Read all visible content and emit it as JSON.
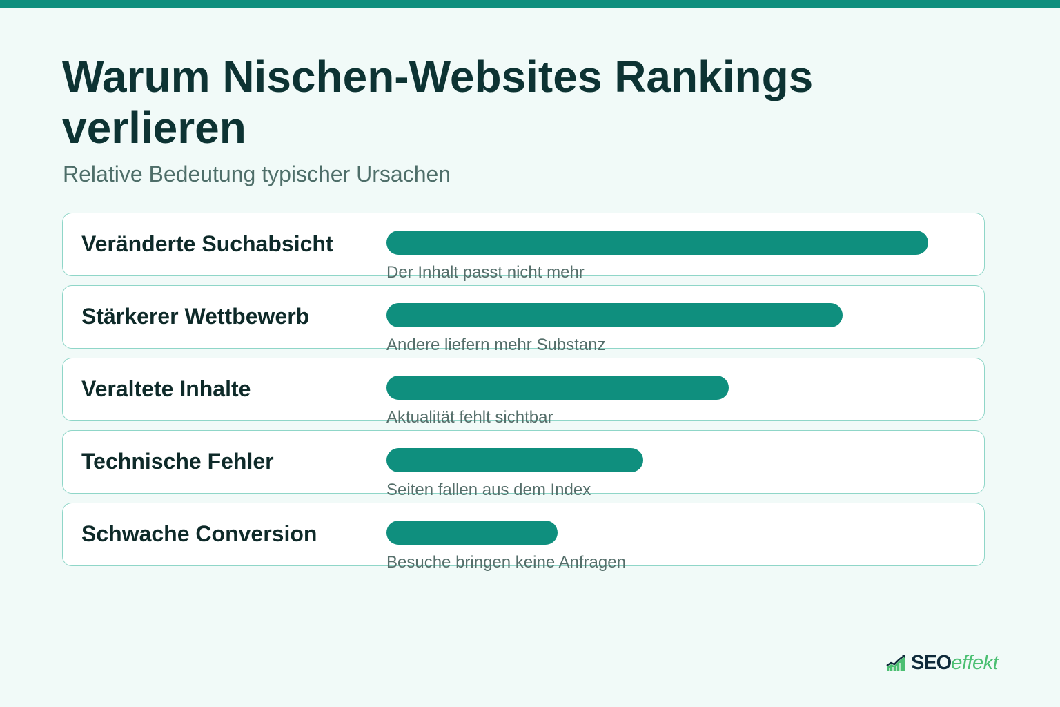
{
  "title": "Warum Nischen-Websites Rankings verlieren",
  "subtitle": "Relative Bedeutung typischer Ursachen",
  "colors": {
    "accent": "#0f8f7e",
    "background": "#f1faf8",
    "card_border": "#8fd6c8",
    "brand_green": "#4bbf72",
    "brand_dark": "#0e2a3a"
  },
  "chart_data": {
    "type": "bar",
    "orientation": "horizontal",
    "title": "Warum Nischen-Websites Rankings verlieren",
    "subtitle": "Relative Bedeutung typischer Ursachen",
    "categories": [
      "Veränderte Suchabsicht",
      "Stärkerer Wettbewerb",
      "Veraltete Inhalte",
      "Technische Fehler",
      "Schwache Conversion"
    ],
    "values": [
      95,
      80,
      60,
      45,
      30
    ],
    "notes": [
      "Der Inhalt passt nicht mehr",
      "Andere liefern mehr Substanz",
      "Aktualität fehlt sichtbar",
      "Seiten fallen aus dem Index",
      "Besuche bringen keine Anfragen"
    ],
    "xlim": [
      0,
      100
    ],
    "xlabel": "",
    "ylabel": "",
    "grid": false,
    "legend": "none"
  },
  "brand": {
    "icon": "chart-growth-icon",
    "seo": "SEO",
    "effekt": "effekt"
  }
}
